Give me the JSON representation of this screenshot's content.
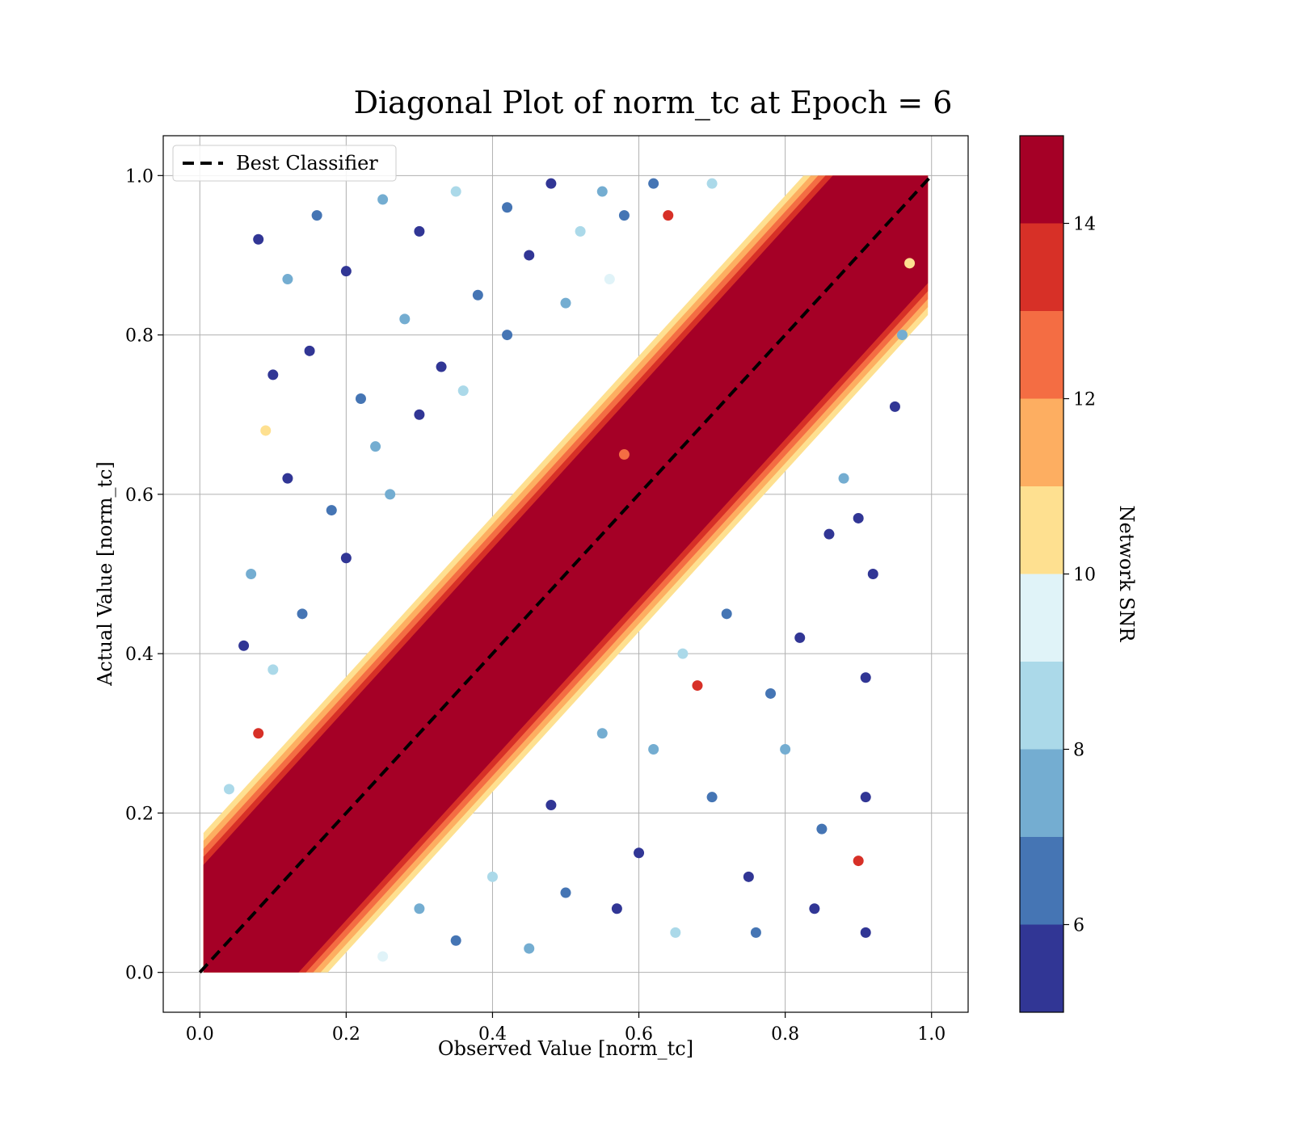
{
  "chart_data": {
    "type": "scatter",
    "title": "Diagonal Plot of norm_tc at Epoch = 6",
    "xlabel": "Observed Value [norm_tc]",
    "ylabel": "Actual Value [norm_tc]",
    "xlim": [
      -0.05,
      1.05
    ],
    "ylim": [
      -0.05,
      1.05
    ],
    "xticks": [
      0.0,
      0.2,
      0.4,
      0.6,
      0.8,
      1.0
    ],
    "yticks": [
      0.0,
      0.2,
      0.4,
      0.6,
      0.8,
      1.0
    ],
    "xtick_labels": [
      "0.0",
      "0.2",
      "0.4",
      "0.6",
      "0.8",
      "1.0"
    ],
    "ytick_labels": [
      "0.0",
      "0.2",
      "0.4",
      "0.6",
      "0.8",
      "1.0"
    ],
    "grid": true,
    "reference_line": {
      "name": "Best Classifier",
      "style": "dashed",
      "color": "#000000",
      "points": [
        [
          0.0,
          0.0
        ],
        [
          1.0,
          1.0
        ]
      ]
    },
    "legend": {
      "position": "upper-left",
      "entries": [
        "Best Classifier"
      ]
    },
    "colorbar": {
      "label": "Network SNR",
      "range": [
        5,
        15
      ],
      "bin_edges": [
        5,
        6,
        7,
        8,
        9,
        10,
        11,
        12,
        13,
        14,
        15
      ],
      "bin_colors": [
        "#313695",
        "#4575b4",
        "#74add1",
        "#abd9e9",
        "#e0f3f8",
        "#fee090",
        "#fdae61",
        "#f46d43",
        "#d73027",
        "#a50026"
      ],
      "ticks": [
        6,
        8,
        10,
        12,
        14
      ],
      "tick_labels": [
        "6",
        "8",
        "10",
        "12",
        "14"
      ]
    },
    "point_color_rule": "Color encodes Network SNR; high-SNR points (~14-15) concentrate along the y=x diagonal, low-SNR points (~5-9) scatter widely away from it",
    "points": [
      {
        "x": 0.08,
        "y": 0.92,
        "snr": 5.5
      },
      {
        "x": 0.12,
        "y": 0.87,
        "snr": 7.5
      },
      {
        "x": 0.09,
        "y": 0.68,
        "snr": 10.5
      },
      {
        "x": 0.1,
        "y": 0.75,
        "snr": 5.5
      },
      {
        "x": 0.16,
        "y": 0.95,
        "snr": 6.5
      },
      {
        "x": 0.2,
        "y": 0.88,
        "snr": 5.5
      },
      {
        "x": 0.25,
        "y": 0.97,
        "snr": 7.5
      },
      {
        "x": 0.3,
        "y": 0.93,
        "snr": 5.5
      },
      {
        "x": 0.35,
        "y": 0.98,
        "snr": 8.5
      },
      {
        "x": 0.42,
        "y": 0.96,
        "snr": 6.5
      },
      {
        "x": 0.48,
        "y": 0.99,
        "snr": 5.5
      },
      {
        "x": 0.55,
        "y": 0.98,
        "snr": 7.5
      },
      {
        "x": 0.62,
        "y": 0.99,
        "snr": 6.5
      },
      {
        "x": 0.7,
        "y": 0.99,
        "snr": 8.5
      },
      {
        "x": 0.15,
        "y": 0.78,
        "snr": 5.5
      },
      {
        "x": 0.22,
        "y": 0.72,
        "snr": 6.5
      },
      {
        "x": 0.28,
        "y": 0.82,
        "snr": 7.5
      },
      {
        "x": 0.33,
        "y": 0.76,
        "snr": 5.5
      },
      {
        "x": 0.38,
        "y": 0.85,
        "snr": 6.5
      },
      {
        "x": 0.45,
        "y": 0.9,
        "snr": 5.5
      },
      {
        "x": 0.52,
        "y": 0.93,
        "snr": 8.5
      },
      {
        "x": 0.58,
        "y": 0.95,
        "snr": 6.5
      },
      {
        "x": 0.07,
        "y": 0.5,
        "snr": 7.5
      },
      {
        "x": 0.06,
        "y": 0.41,
        "snr": 5.5
      },
      {
        "x": 0.12,
        "y": 0.62,
        "snr": 5.5
      },
      {
        "x": 0.18,
        "y": 0.58,
        "snr": 6.5
      },
      {
        "x": 0.24,
        "y": 0.66,
        "snr": 7.5
      },
      {
        "x": 0.3,
        "y": 0.7,
        "snr": 5.5
      },
      {
        "x": 0.36,
        "y": 0.73,
        "snr": 8.5
      },
      {
        "x": 0.42,
        "y": 0.8,
        "snr": 6.5
      },
      {
        "x": 0.5,
        "y": 0.84,
        "snr": 7.5
      },
      {
        "x": 0.56,
        "y": 0.87,
        "snr": 9.5
      },
      {
        "x": 0.64,
        "y": 0.95,
        "snr": 13.5
      },
      {
        "x": 0.58,
        "y": 0.65,
        "snr": 12.5
      },
      {
        "x": 0.08,
        "y": 0.3,
        "snr": 13.5
      },
      {
        "x": 0.1,
        "y": 0.38,
        "snr": 8.5
      },
      {
        "x": 0.14,
        "y": 0.45,
        "snr": 6.5
      },
      {
        "x": 0.2,
        "y": 0.52,
        "snr": 5.5
      },
      {
        "x": 0.26,
        "y": 0.6,
        "snr": 7.5
      },
      {
        "x": 0.04,
        "y": 0.23,
        "snr": 8.5
      },
      {
        "x": 0.92,
        "y": 0.5,
        "snr": 5.5
      },
      {
        "x": 0.95,
        "y": 0.71,
        "snr": 5.5
      },
      {
        "x": 0.91,
        "y": 0.37,
        "snr": 5.5
      },
      {
        "x": 0.91,
        "y": 0.22,
        "snr": 5.5
      },
      {
        "x": 0.9,
        "y": 0.14,
        "snr": 13.5
      },
      {
        "x": 0.91,
        "y": 0.05,
        "snr": 5.5
      },
      {
        "x": 0.85,
        "y": 0.18,
        "snr": 6.5
      },
      {
        "x": 0.8,
        "y": 0.28,
        "snr": 7.5
      },
      {
        "x": 0.75,
        "y": 0.12,
        "snr": 5.5
      },
      {
        "x": 0.68,
        "y": 0.36,
        "snr": 13.5
      },
      {
        "x": 0.7,
        "y": 0.22,
        "snr": 6.5
      },
      {
        "x": 0.65,
        "y": 0.05,
        "snr": 8.5
      },
      {
        "x": 0.6,
        "y": 0.15,
        "snr": 5.5
      },
      {
        "x": 0.55,
        "y": 0.3,
        "snr": 7.5
      },
      {
        "x": 0.5,
        "y": 0.1,
        "snr": 6.5
      },
      {
        "x": 0.48,
        "y": 0.21,
        "snr": 5.5
      },
      {
        "x": 0.45,
        "y": 0.03,
        "snr": 7.5
      },
      {
        "x": 0.4,
        "y": 0.12,
        "snr": 8.5
      },
      {
        "x": 0.35,
        "y": 0.04,
        "snr": 6.5
      },
      {
        "x": 0.3,
        "y": 0.08,
        "snr": 7.5
      },
      {
        "x": 0.25,
        "y": 0.02,
        "snr": 9.5
      },
      {
        "x": 0.82,
        "y": 0.42,
        "snr": 5.5
      },
      {
        "x": 0.78,
        "y": 0.35,
        "snr": 6.5
      },
      {
        "x": 0.86,
        "y": 0.55,
        "snr": 5.5
      },
      {
        "x": 0.88,
        "y": 0.62,
        "snr": 7.5
      },
      {
        "x": 0.9,
        "y": 0.57,
        "snr": 5.5
      },
      {
        "x": 0.72,
        "y": 0.45,
        "snr": 6.5
      },
      {
        "x": 0.66,
        "y": 0.4,
        "snr": 8.5
      },
      {
        "x": 0.62,
        "y": 0.28,
        "snr": 7.5
      },
      {
        "x": 0.57,
        "y": 0.08,
        "snr": 5.5
      },
      {
        "x": 0.76,
        "y": 0.05,
        "snr": 6.5
      },
      {
        "x": 0.84,
        "y": 0.08,
        "snr": 5.5
      },
      {
        "x": 0.97,
        "y": 0.89,
        "snr": 10.5
      },
      {
        "x": 0.96,
        "y": 0.8,
        "snr": 7.5
      }
    ]
  }
}
